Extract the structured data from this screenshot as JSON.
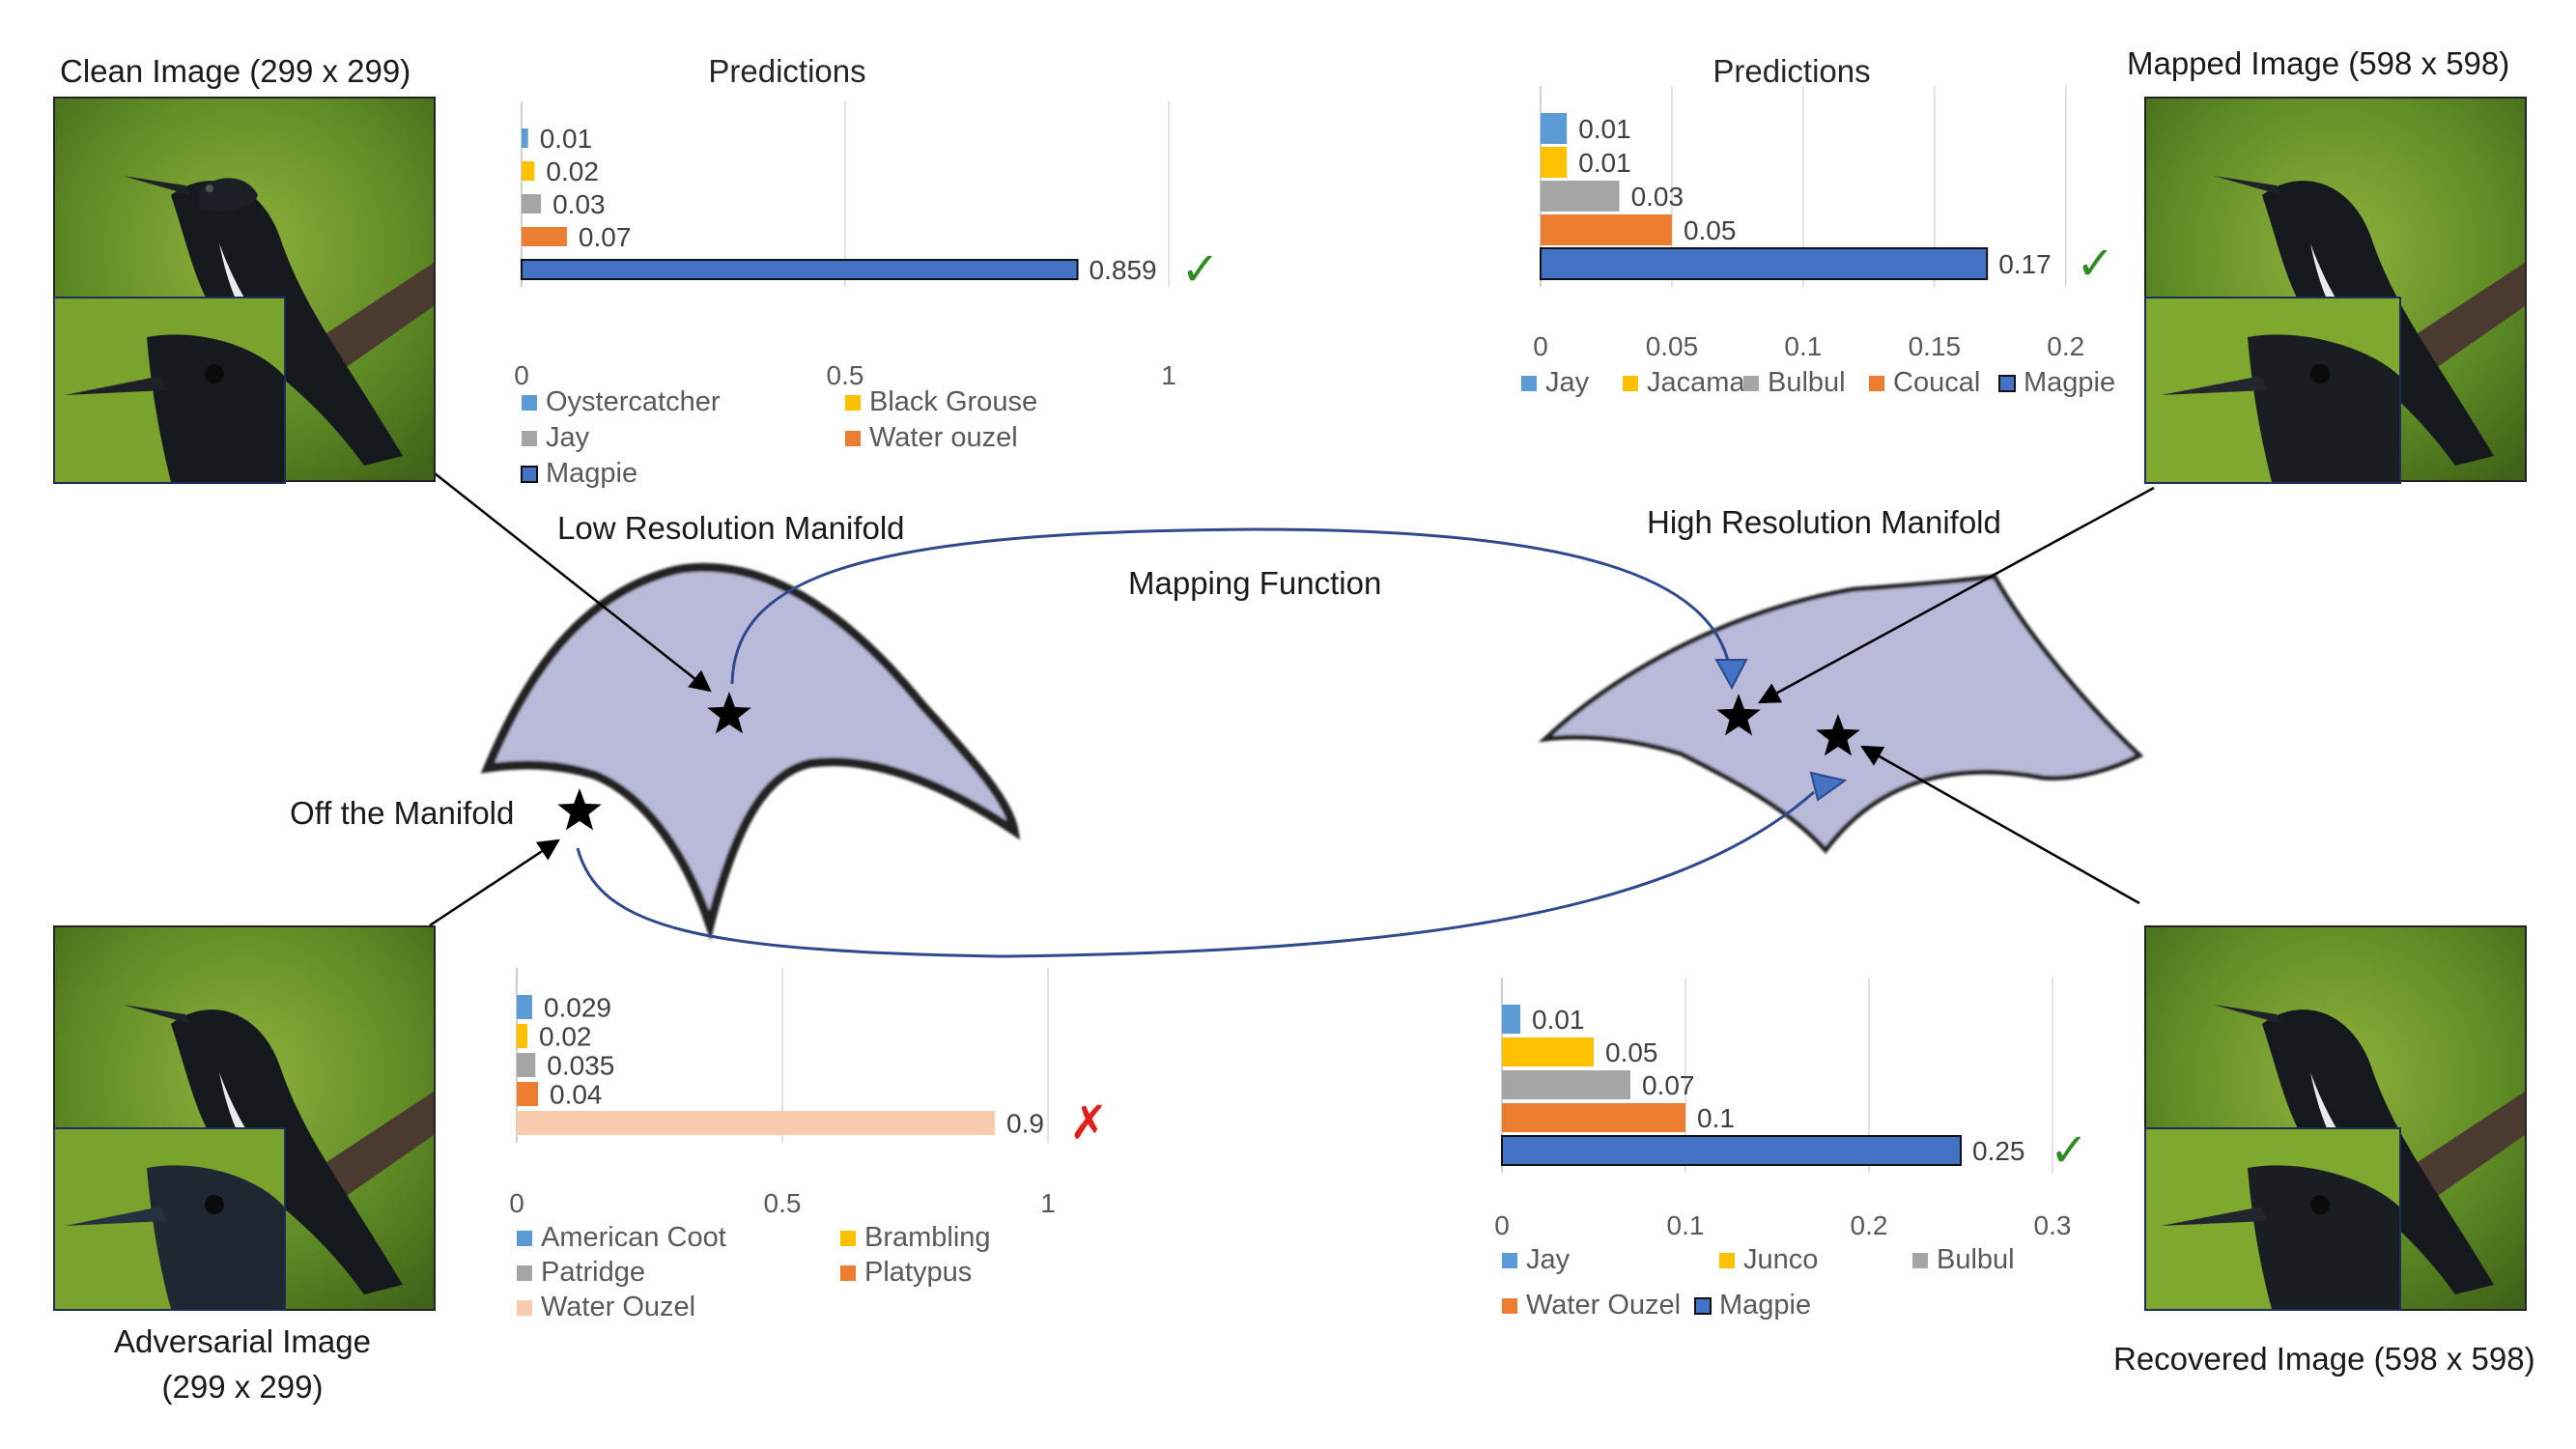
{
  "panels": {
    "clean": {
      "title": "Clean Image (299 x 299)"
    },
    "mapped": {
      "title": "Mapped Image (598 x 598)"
    },
    "adversarial": {
      "title_line1": "Adversarial Image",
      "title_line2": "(299 x 299)"
    },
    "recovered": {
      "title": "Recovered Image (598 x 598)"
    }
  },
  "diagram": {
    "low_res_label": "Low Resolution Manifold",
    "high_res_label": "High Resolution Manifold",
    "mapping_label": "Mapping Function",
    "off_manifold_label": "Off the Manifold",
    "colors": {
      "manifold_fill": "#b9b9d9",
      "arc": "#2f4a8c",
      "arrowhead": "#4472c4"
    }
  },
  "marks": {
    "correct": "✓",
    "wrong": "✗",
    "correct_color": "#2e8b20",
    "wrong_color": "#e0201b"
  },
  "chart_data": [
    {
      "id": "clean",
      "type": "bar",
      "orientation": "horizontal",
      "title": "Predictions",
      "categories": [
        "Oystercatcher",
        "Black Grouse",
        "Jay",
        "Water ouzel",
        "Magpie"
      ],
      "values": [
        0.01,
        0.02,
        0.03,
        0.07,
        0.859
      ],
      "value_labels": [
        "0.01",
        "0.02",
        "0.03",
        "0.07",
        "0.859"
      ],
      "colors": [
        "#5b9bd5",
        "#ffc000",
        "#a5a5a5",
        "#ed7d31",
        "#4472c4"
      ],
      "xlim": [
        0,
        1
      ],
      "ticks": [
        0,
        0.5,
        1
      ],
      "tick_labels": [
        "0",
        "0.5",
        "1"
      ],
      "grid": true,
      "result": "correct"
    },
    {
      "id": "mapped",
      "type": "bar",
      "orientation": "horizontal",
      "title": "Predictions",
      "categories": [
        "Jay",
        "Jacamar",
        "Bulbul",
        "Coucal",
        "Magpie"
      ],
      "values": [
        0.01,
        0.01,
        0.03,
        0.05,
        0.17
      ],
      "value_labels": [
        "0.01",
        "0.01",
        "0.03",
        "0.05",
        "0.17"
      ],
      "colors": [
        "#5b9bd5",
        "#ffc000",
        "#a5a5a5",
        "#ed7d31",
        "#4472c4"
      ],
      "xlim": [
        0,
        0.2
      ],
      "ticks": [
        0,
        0.05,
        0.1,
        0.15,
        0.2
      ],
      "tick_labels": [
        "0",
        "0.05",
        "0.1",
        "0.15",
        "0.2"
      ],
      "grid": true,
      "result": "correct"
    },
    {
      "id": "adversarial",
      "type": "bar",
      "orientation": "horizontal",
      "title": "",
      "categories": [
        "American Coot",
        "Brambling",
        "Patridge",
        "Platypus",
        "Water Ouzel"
      ],
      "values": [
        0.029,
        0.02,
        0.035,
        0.04,
        0.9
      ],
      "value_labels": [
        "0.029",
        "0.02",
        "0.035",
        "0.04",
        "0.9"
      ],
      "colors": [
        "#5b9bd5",
        "#ffc000",
        "#a5a5a5",
        "#ed7d31",
        "#f8cbad"
      ],
      "xlim": [
        0,
        1
      ],
      "ticks": [
        0,
        0.5,
        1
      ],
      "tick_labels": [
        "0",
        "0.5",
        "1"
      ],
      "grid": true,
      "result": "wrong"
    },
    {
      "id": "recovered",
      "type": "bar",
      "orientation": "horizontal",
      "title": "",
      "categories": [
        "Jay",
        "Junco",
        "Bulbul",
        "Water Ouzel",
        "Magpie"
      ],
      "values": [
        0.01,
        0.05,
        0.07,
        0.1,
        0.25
      ],
      "value_labels": [
        "0.01",
        "0.05",
        "0.07",
        "0.1",
        "0.25"
      ],
      "colors": [
        "#5b9bd5",
        "#ffc000",
        "#a5a5a5",
        "#ed7d31",
        "#4472c4"
      ],
      "xlim": [
        0,
        0.3
      ],
      "ticks": [
        0,
        0.1,
        0.2,
        0.3
      ],
      "tick_labels": [
        "0",
        "0.1",
        "0.2",
        "0.3"
      ],
      "grid": true,
      "result": "correct"
    }
  ]
}
